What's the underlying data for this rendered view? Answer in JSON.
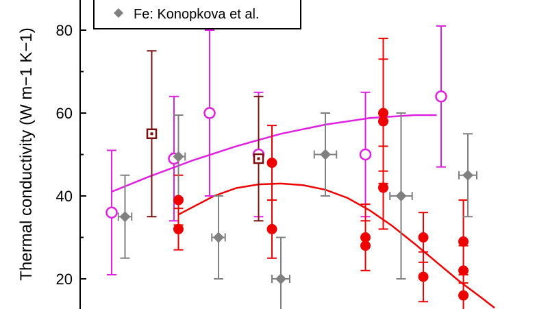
{
  "chart_data": {
    "type": "scatter",
    "ylabel": "Thermal conductivity (W m−1 K−1)",
    "ylim": [
      15,
      88
    ],
    "xlim": [
      0,
      100
    ],
    "yticks": [
      20,
      40,
      60,
      80
    ],
    "legend": {
      "placement": "top-left",
      "entries": [
        {
          "label": "Fe: Konopkova et al.",
          "marker": "diamond",
          "color": "#808080"
        }
      ]
    },
    "series": [
      {
        "marker": "open-circle",
        "color": "#e020e0",
        "points": [
          {
            "x": 2,
            "y": 36,
            "ylo": 21,
            "yhi": 51
          },
          {
            "x": 16,
            "y": 49,
            "ylo": 34,
            "yhi": 64
          },
          {
            "x": 24,
            "y": 60,
            "ylo": 40,
            "yhi": 80
          },
          {
            "x": 35,
            "y": 50,
            "ylo": 35,
            "yhi": 65
          },
          {
            "x": 59,
            "y": 50,
            "ylo": 35,
            "yhi": 65
          },
          {
            "x": 76,
            "y": 64,
            "ylo": 47,
            "yhi": 81
          }
        ],
        "fit": {
          "x": [
            2,
            10,
            20,
            30,
            40,
            50,
            60,
            70,
            75
          ],
          "y": [
            41,
            44.5,
            48.5,
            52,
            55,
            57.2,
            58.8,
            59.5,
            59.5
          ]
        }
      },
      {
        "marker": "filled-circle",
        "color": "#ee0000",
        "points": [
          {
            "x": 17,
            "y": 39,
            "ylo": 33,
            "yhi": 45
          },
          {
            "x": 17,
            "y": 32,
            "ylo": 27,
            "yhi": 37
          },
          {
            "x": 38,
            "y": 48,
            "ylo": 39,
            "yhi": 57
          },
          {
            "x": 38,
            "y": 32,
            "ylo": 25,
            "yhi": 39
          },
          {
            "x": 59,
            "y": 30,
            "ylo": 22,
            "yhi": 38
          },
          {
            "x": 59,
            "y": 28,
            "ylo": 22,
            "yhi": 34
          },
          {
            "x": 63,
            "y": 60,
            "ylo": 46,
            "yhi": 78
          },
          {
            "x": 63,
            "y": 58,
            "ylo": 43,
            "yhi": 73
          },
          {
            "x": 63,
            "y": 42,
            "ylo": 32,
            "yhi": 52
          },
          {
            "x": 72,
            "y": 30,
            "ylo": 24,
            "yhi": 36
          },
          {
            "x": 72,
            "y": 20.5,
            "ylo": 14.5,
            "yhi": 26.5
          },
          {
            "x": 81,
            "y": 29,
            "ylo": 19,
            "yhi": 39
          },
          {
            "x": 81,
            "y": 22,
            "ylo": 16,
            "yhi": 28
          },
          {
            "x": 81,
            "y": 16,
            "ylo": 11,
            "yhi": 21
          }
        ],
        "fit": {
          "x": [
            17,
            25,
            30,
            35,
            40,
            45,
            50,
            55,
            60,
            65,
            70,
            75,
            80,
            85,
            88
          ],
          "y": [
            35.5,
            40,
            41.9,
            42.8,
            43,
            42.6,
            41.5,
            39.5,
            36.5,
            32.8,
            28.5,
            24,
            19.5,
            15.5,
            13
          ]
        }
      },
      {
        "marker": "diamond",
        "color": "#808080",
        "points": [
          {
            "x": 5,
            "y": 35,
            "ylo": 25,
            "yhi": 45,
            "xerr": 1.5
          },
          {
            "x": 17,
            "y": 49.5,
            "ylo": 39.5,
            "yhi": 59.5,
            "xerr": 1.5
          },
          {
            "x": 26,
            "y": 30,
            "ylo": 20,
            "yhi": 40,
            "xerr": 1.5
          },
          {
            "x": 40,
            "y": 20,
            "ylo": 10,
            "yhi": 30,
            "xerr": 2
          },
          {
            "x": 50,
            "y": 50,
            "ylo": 40,
            "yhi": 60,
            "xerr": 2.5
          },
          {
            "x": 67,
            "y": 40,
            "ylo": 20,
            "yhi": 60,
            "xerr": 2.5
          },
          {
            "x": 82,
            "y": 45,
            "ylo": 35,
            "yhi": 55,
            "xerr": 2
          }
        ]
      },
      {
        "marker": "open-square",
        "color": "#7a1010",
        "points": [
          {
            "x": 11,
            "y": 55,
            "ylo": 35,
            "yhi": 75
          },
          {
            "x": 35,
            "y": 49,
            "ylo": 34,
            "yhi": 64
          }
        ]
      }
    ]
  }
}
